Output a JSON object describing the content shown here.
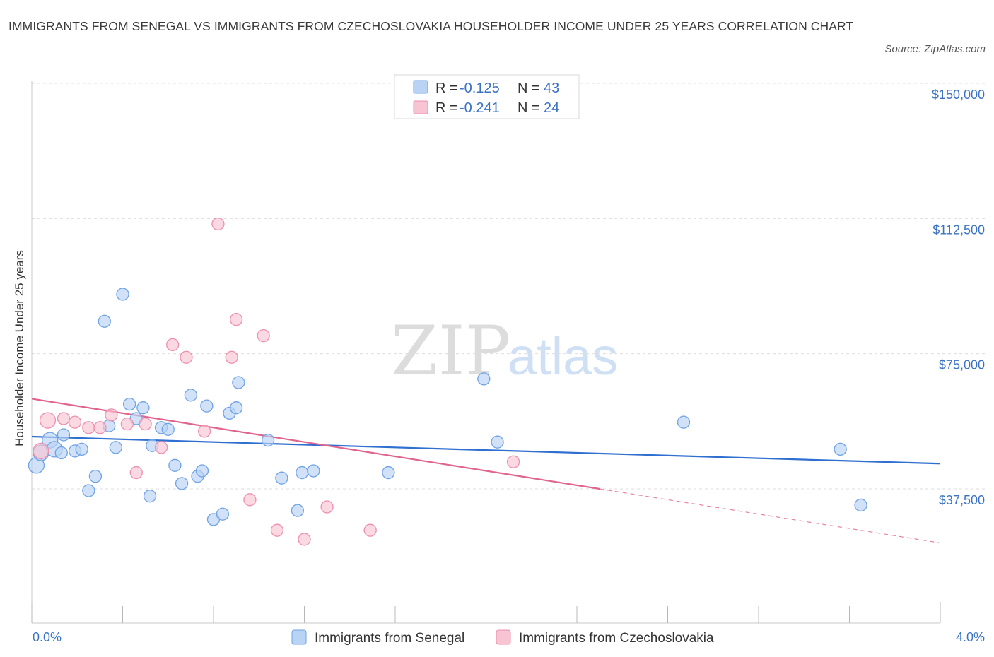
{
  "chart_data": {
    "type": "scatter",
    "title": "IMMIGRANTS FROM SENEGAL VS IMMIGRANTS FROM CZECHOSLOVAKIA HOUSEHOLDER INCOME UNDER 25 YEARS CORRELATION CHART",
    "source": "Source: ZipAtlas.com",
    "ylabel": "Householder Income Under 25 years",
    "xlim": [
      0,
      4
    ],
    "ylim": [
      0,
      150000
    ],
    "x_tick_labels": [
      "0.0%",
      "4.0%"
    ],
    "y_ticks": [
      {
        "value": 150000,
        "label": "$150,000"
      },
      {
        "value": 112500,
        "label": "$112,500"
      },
      {
        "value": 75000,
        "label": "$75,000"
      },
      {
        "value": 37500,
        "label": "$37,500"
      }
    ],
    "legend": [
      {
        "r_label": "R =",
        "r_value": "-0.125",
        "n_label": "N =",
        "n_value": "43"
      },
      {
        "r_label": "R =",
        "r_value": "-0.241",
        "n_label": "N =",
        "n_value": "24"
      }
    ],
    "watermark": {
      "zip": "ZIP",
      "atlas": "atlas"
    },
    "series": [
      {
        "name": "Immigrants from Senegal",
        "color": "#6fa3e6",
        "fill": "#b9d3f5",
        "line_color": "#2f6fcf",
        "trend": {
          "x": [
            0,
            4
          ],
          "y": [
            52000,
            44500
          ],
          "solid_to": 4
        },
        "points": [
          [
            0.02,
            44000
          ],
          [
            0.04,
            47500
          ],
          [
            0.08,
            51000
          ],
          [
            0.1,
            48500
          ],
          [
            0.14,
            52500
          ],
          [
            0.19,
            48000
          ],
          [
            0.22,
            48500
          ],
          [
            0.25,
            37000
          ],
          [
            0.28,
            41000
          ],
          [
            0.32,
            84000
          ],
          [
            0.34,
            55000
          ],
          [
            0.37,
            49000
          ],
          [
            0.4,
            91500
          ],
          [
            0.43,
            61000
          ],
          [
            0.46,
            57000
          ],
          [
            0.49,
            60000
          ],
          [
            0.52,
            35500
          ],
          [
            0.53,
            49500
          ],
          [
            0.57,
            54500
          ],
          [
            0.6,
            54000
          ],
          [
            0.63,
            44000
          ],
          [
            0.66,
            39000
          ],
          [
            0.7,
            63500
          ],
          [
            0.73,
            41000
          ],
          [
            0.75,
            42500
          ],
          [
            0.77,
            60500
          ],
          [
            0.8,
            29000
          ],
          [
            0.84,
            30500
          ],
          [
            0.87,
            58500
          ],
          [
            0.9,
            60000
          ],
          [
            0.91,
            67000
          ],
          [
            1.04,
            51000
          ],
          [
            1.1,
            40500
          ],
          [
            1.17,
            31500
          ],
          [
            1.19,
            42000
          ],
          [
            1.24,
            42500
          ],
          [
            1.57,
            42000
          ],
          [
            1.99,
            68000
          ],
          [
            2.05,
            50500
          ],
          [
            2.87,
            56000
          ],
          [
            3.56,
            48500
          ],
          [
            3.65,
            33000
          ],
          [
            0.13,
            47500
          ]
        ]
      },
      {
        "name": "Immigrants from Czechoslovakia",
        "color": "#ee8fae",
        "fill": "#f7c4d4",
        "line_color": "#e0648f",
        "trend": {
          "x": [
            0,
            4
          ],
          "y": [
            62500,
            22500
          ],
          "solid_to": 2.5
        },
        "points": [
          [
            0.04,
            48000
          ],
          [
            0.07,
            56500
          ],
          [
            0.14,
            57000
          ],
          [
            0.19,
            56000
          ],
          [
            0.25,
            54500
          ],
          [
            0.3,
            54500
          ],
          [
            0.35,
            58000
          ],
          [
            0.42,
            55500
          ],
          [
            0.46,
            42000
          ],
          [
            0.5,
            55500
          ],
          [
            0.57,
            49000
          ],
          [
            0.62,
            77500
          ],
          [
            0.68,
            74000
          ],
          [
            0.76,
            53500
          ],
          [
            0.82,
            111000
          ],
          [
            0.88,
            74000
          ],
          [
            0.9,
            84500
          ],
          [
            0.96,
            34500
          ],
          [
            1.02,
            80000
          ],
          [
            1.08,
            26000
          ],
          [
            1.2,
            23500
          ],
          [
            1.3,
            32500
          ],
          [
            1.49,
            26000
          ],
          [
            2.12,
            45000
          ]
        ]
      }
    ]
  }
}
